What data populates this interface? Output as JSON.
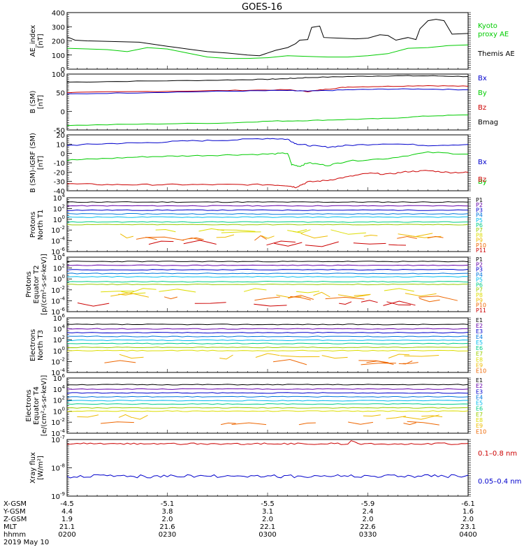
{
  "title": "GOES-16",
  "colors": {
    "black": "#000000",
    "green": "#00cc00",
    "blue": "#0000cc",
    "red": "#cc0000"
  },
  "chart_data": [
    {
      "type": "line",
      "panel": "ae",
      "ylabel": "AE_index\n[nT]",
      "ylim": [
        0,
        420
      ],
      "yticks": [
        "0",
        "100",
        "200",
        "300",
        "400"
      ],
      "legend": [
        {
          "label": "Kyoto\nproxy AE",
          "color": "#00cc00"
        },
        {
          "label": "Themis AE",
          "color": "#000000"
        }
      ],
      "series": [
        {
          "color": "#000000",
          "x": [
            0,
            0.02,
            0.05,
            0.12,
            0.18,
            0.25,
            0.3,
            0.35,
            0.4,
            0.45,
            0.48,
            0.52,
            0.55,
            0.57,
            0.58,
            0.6,
            0.61,
            0.63,
            0.64,
            0.68,
            0.72,
            0.75,
            0.78,
            0.8,
            0.82,
            0.85,
            0.87,
            0.88,
            0.9,
            0.92,
            0.94,
            0.96,
            1.0
          ],
          "values": [
            240,
            215,
            210,
            205,
            200,
            170,
            150,
            130,
            120,
            105,
            100,
            140,
            160,
            190,
            215,
            220,
            310,
            320,
            235,
            230,
            225,
            230,
            255,
            250,
            215,
            235,
            220,
            300,
            360,
            370,
            360,
            260,
            265
          ]
        },
        {
          "color": "#00cc00",
          "x": [
            0,
            0.1,
            0.15,
            0.2,
            0.25,
            0.3,
            0.35,
            0.4,
            0.45,
            0.5,
            0.55,
            0.6,
            0.65,
            0.7,
            0.75,
            0.8,
            0.85,
            0.9,
            0.95,
            1.0
          ],
          "values": [
            155,
            145,
            130,
            160,
            150,
            120,
            90,
            80,
            80,
            85,
            100,
            95,
            90,
            90,
            100,
            115,
            155,
            160,
            175,
            180
          ]
        }
      ]
    },
    {
      "type": "line",
      "panel": "bsm",
      "ylabel": "B (SM)\n[nT]",
      "ylim": [
        -55,
        105
      ],
      "yticks": [
        "-50",
        "0",
        "50",
        "100"
      ],
      "legend": [
        {
          "label": "Bx",
          "color": "#0000cc"
        },
        {
          "label": "By",
          "color": "#00cc00"
        },
        {
          "label": "Bz",
          "color": "#cc0000"
        },
        {
          "label": "Bmag",
          "color": "#000000"
        }
      ],
      "series": [
        {
          "color": "#000000",
          "x": [
            0,
            0.2,
            0.4,
            0.5,
            0.55,
            0.6,
            0.7,
            0.8,
            0.9,
            1.0
          ],
          "values": [
            82,
            85,
            88,
            90,
            92,
            95,
            98,
            100,
            100,
            98
          ]
        },
        {
          "color": "#cc0000",
          "x": [
            0,
            0.2,
            0.4,
            0.55,
            0.6,
            0.65,
            0.7,
            0.8,
            0.9,
            1.0
          ],
          "values": [
            52,
            55,
            58,
            60,
            55,
            62,
            68,
            70,
            72,
            70
          ]
        },
        {
          "color": "#0000cc",
          "x": [
            0,
            0.2,
            0.4,
            0.55,
            0.6,
            0.7,
            0.8,
            0.9,
            1.0
          ],
          "values": [
            48,
            52,
            56,
            58,
            56,
            60,
            62,
            62,
            60
          ]
        },
        {
          "color": "#00cc00",
          "x": [
            0,
            0.2,
            0.4,
            0.5,
            0.6,
            0.7,
            0.8,
            0.9,
            1.0
          ],
          "values": [
            -42,
            -38,
            -35,
            -30,
            -28,
            -25,
            -22,
            -15,
            -12
          ]
        }
      ]
    },
    {
      "type": "line",
      "panel": "bigrf",
      "ylabel": "B (SM)-IGRF (SM)\n[nT]",
      "ylim": [
        -42,
        22
      ],
      "yticks": [
        "-40",
        "-30",
        "-20",
        "-10",
        "0",
        "10",
        "20"
      ],
      "legend": [
        {
          "label": "Bx",
          "color": "#0000cc"
        },
        {
          "label": "By",
          "color": "#00cc00"
        },
        {
          "label": "Bz",
          "color": "#cc0000"
        }
      ],
      "series": [
        {
          "color": "#0000cc",
          "x": [
            0,
            0.1,
            0.2,
            0.3,
            0.4,
            0.5,
            0.55,
            0.57,
            0.6,
            0.65,
            0.7,
            0.8,
            0.9,
            1.0
          ],
          "values": [
            10,
            12,
            13,
            15,
            16,
            18,
            17,
            12,
            10,
            8,
            10,
            12,
            10,
            11
          ]
        },
        {
          "color": "#00cc00",
          "x": [
            0,
            0.1,
            0.2,
            0.3,
            0.4,
            0.5,
            0.55,
            0.56,
            0.58,
            0.6,
            0.65,
            0.7,
            0.8,
            0.9,
            1.0
          ],
          "values": [
            -7,
            -5,
            -3,
            -2,
            -1,
            0,
            1,
            -12,
            -14,
            -10,
            -13,
            -8,
            -5,
            2,
            0
          ]
        },
        {
          "color": "#cc0000",
          "x": [
            0,
            0.1,
            0.2,
            0.3,
            0.4,
            0.5,
            0.55,
            0.57,
            0.6,
            0.65,
            0.7,
            0.75,
            0.8,
            0.85,
            0.9,
            0.95,
            1.0
          ],
          "values": [
            -34,
            -35,
            -35,
            -35,
            -35,
            -35,
            -36,
            -38,
            -32,
            -30,
            -26,
            -22,
            -23,
            -20,
            -19,
            -21,
            -21
          ]
        }
      ]
    },
    {
      "type": "line",
      "panel": "protons_t1",
      "ylabel": "Protons\nNorth T1",
      "ylim": [
        -6,
        4
      ],
      "yticks": [
        "10^-6",
        "10^-4",
        "10^-2",
        "10^0",
        "10^2",
        "10^4"
      ],
      "legend": [
        "P1",
        "P2",
        "P3",
        "P4",
        "P5",
        "P6",
        "P7",
        "P8",
        "P9",
        "P10",
        "P11"
      ]
    },
    {
      "type": "line",
      "panel": "protons_t2",
      "ylabel": "Protons\nEquator T2\n[p/(cm²-s-sr-keV)]",
      "ylim": [
        -6,
        4
      ],
      "yticks": [
        "10^-6",
        "10^-4",
        "10^-2",
        "10^0",
        "10^2",
        "10^4"
      ],
      "legend": [
        "P1",
        "P2",
        "P3",
        "P4",
        "P5",
        "P6",
        "P7",
        "P8",
        "P9",
        "P10",
        "P11"
      ]
    },
    {
      "type": "line",
      "panel": "electrons_t3",
      "ylabel": "Electrons\nNorth T3",
      "ylim": [
        -4,
        6
      ],
      "yticks": [
        "10^-4",
        "10^-2",
        "10^0",
        "10^2",
        "10^4",
        "10^6"
      ],
      "legend": [
        "E1",
        "E2",
        "E3",
        "E4",
        "E5",
        "E6",
        "E7",
        "E8",
        "E9",
        "E10"
      ]
    },
    {
      "type": "line",
      "panel": "electrons_t4",
      "ylabel": "Electrons\nEquator T4\n[e/(cm²-s-sr-keV)]",
      "ylim": [
        -4,
        6
      ],
      "yticks": [
        "10^-4",
        "10^-2",
        "10^0",
        "10^2",
        "10^4",
        "10^6"
      ],
      "legend": [
        "E1",
        "E2",
        "E3",
        "E4",
        "E5",
        "E6",
        "E7",
        "E8",
        "E9",
        "E10"
      ]
    },
    {
      "type": "line",
      "panel": "xray",
      "ylabel": "Xray flux\n[W/m²]",
      "ylim": [
        -9,
        -7
      ],
      "yticks": [
        "10^-9",
        "10^-8",
        "10^-7"
      ],
      "legend": [
        {
          "label": "0.1–0.8 nm",
          "color": "#cc0000"
        },
        {
          "label": "0.05–0.4 nm",
          "color": "#0000cc"
        }
      ]
    }
  ],
  "proton_colors": [
    "#000000",
    "#6600aa",
    "#0000cc",
    "#0077dd",
    "#00bbee",
    "#00cc88",
    "#99cc00",
    "#dddd00",
    "#eebb00",
    "#ee6600",
    "#cc0000"
  ],
  "proton_levels": [
    3.2,
    2.5,
    1.7,
    1.0,
    0.4,
    -0.5,
    -1.0,
    -2.2,
    -3.0,
    -3.6,
    -4.5
  ],
  "electron_colors": [
    "#000000",
    "#6600aa",
    "#0000cc",
    "#0077dd",
    "#00bbee",
    "#00cc88",
    "#99cc00",
    "#dddd00",
    "#eebb00",
    "#ee6600",
    "#cc0000"
  ],
  "electron_levels": [
    4.8,
    4.0,
    3.3,
    2.6,
    1.9,
    1.3,
    0.6,
    0.0,
    -1.0,
    -2.2
  ],
  "xaxis": {
    "row_labels": [
      "X-GSM",
      "Y-GSM",
      "Z-GSM",
      "MLT",
      "hhmm",
      "2019 May 10"
    ],
    "columns": [
      {
        "values": [
          "-4.5",
          "4.4",
          "1.9",
          "21.1",
          "0200"
        ]
      },
      {
        "values": [
          "-5.1",
          "3.8",
          "2.0",
          "21.6",
          "0230"
        ]
      },
      {
        "values": [
          "-5.5",
          "3.1",
          "2.0",
          "22.1",
          "0300"
        ]
      },
      {
        "values": [
          "-5.9",
          "2.4",
          "2.0",
          "22.6",
          "0330"
        ]
      },
      {
        "values": [
          "-6.1",
          "1.6",
          "2.0",
          "23.1",
          "0400"
        ]
      }
    ]
  }
}
